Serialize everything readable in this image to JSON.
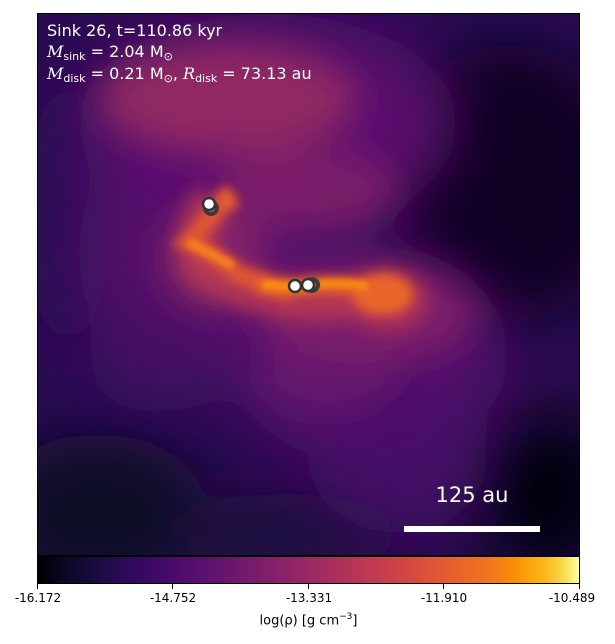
{
  "annotation": {
    "line1": "Sink 26, t=110.86 kyr",
    "m_sink_label": "M",
    "m_sink_sub": "sink",
    "m_sink_value": " = 2.04 M",
    "m_sink_unit_sub": "⊙",
    "m_disk_label": "M",
    "m_disk_sub": "disk",
    "m_disk_value": " = 0.21 M",
    "m_disk_unit_sub": "⊙",
    "r_disk_sep": ", ",
    "r_disk_label": "R",
    "r_disk_sub": "disk",
    "r_disk_value": " = 73.13 au"
  },
  "scale_bar": {
    "label": "125 au"
  },
  "colorbar": {
    "colormap": "inferno",
    "ticks": [
      "-16.172",
      "-14.752",
      "-13.331",
      "-11.910",
      "-10.489"
    ],
    "label_main": "log(ρ) [g cm",
    "label_sup": "−3",
    "label_end": "]"
  },
  "sinks": [
    {
      "name": "sink-upper-left"
    },
    {
      "name": "sink-center-left"
    },
    {
      "name": "sink-center-right"
    }
  ]
}
